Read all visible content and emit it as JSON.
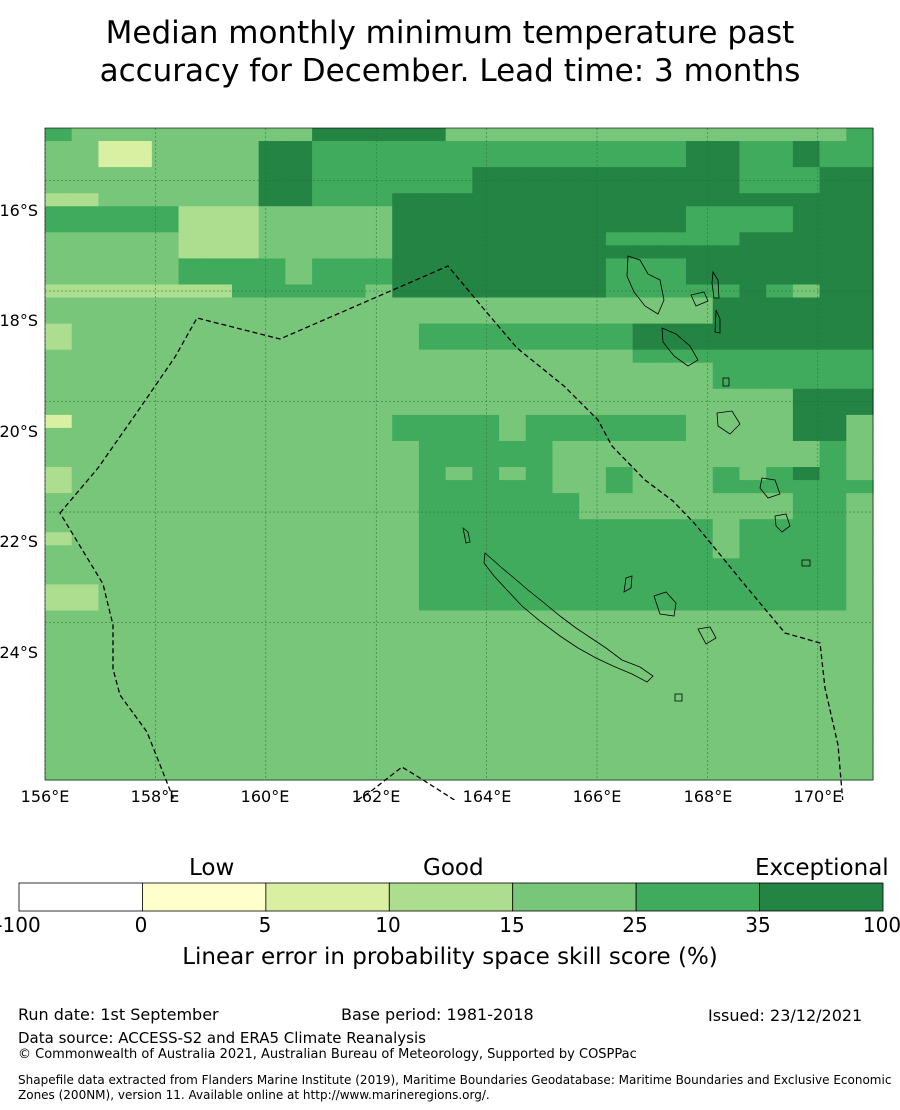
{
  "title": {
    "line1": "Median monthly minimum temperature past",
    "line2": "accuracy for December. Lead time: 3 months"
  },
  "map": {
    "lat_labels": [
      "16°S",
      "18°S",
      "20°S",
      "22°S",
      "24°S"
    ],
    "lon_labels": [
      "156°E",
      "158°E",
      "160°E",
      "162°E",
      "164°E",
      "166°E",
      "168°E",
      "170°E"
    ],
    "lon_range": [
      156,
      171
    ],
    "lat_range": [
      -26.85,
      -15.05
    ],
    "grid_step_deg": 0.5,
    "boundary_style": "dashed",
    "colors": [
      "#ffffff",
      "#ffffcc",
      "#d9f0a3",
      "#addd8e",
      "#78c679",
      "#41ab5d",
      "#238443"
    ],
    "rows_codes": [
      "5444444444666664444444444444445",
      "4422444466555555555555556655655",
      "4422444466555555555555556655655",
      "4444444466555555666666666655566",
      "4444444466555555666666666655566",
      "3344444466555666666666666666666",
      "5555533344444666666666665555666",
      "5555533344444666666666665555666",
      "4444433344444666666665555566666",
      "4444433344444666666666666666666",
      "4444455554555666666665556666666",
      "4444455554555666666665556666666",
      "3333333555554666666665555565466",
      "4444444444444444444444444666666",
      "4444444444444444444444444666666",
      "3444444444444455555555666666666",
      "3444444444444455555555666666666",
      "4444444444444444444444555555555",
      "4444444444444444444444444555555",
      "4444444444444444444444444555555",
      "4444444444444444444444444444666",
      "4444444444444444444444444444666",
      "2444444444444555545555554444664",
      "4444444444444555545555554444664",
      "4444444444444455555444444444454",
      "4444444444444455555444444444454",
      "3444444444444454545445444545654",
      "3444444444444455555445444555555",
      "4444444444444455555544444444554",
      "4444444444444455555544444444554",
      "4444444444444455555555555455554",
      "3444444444444455555555555455554",
      "4444444444444455555555555455554",
      "4444444444444455555555555555554",
      "4444444444444455555555555555554",
      "3344444444444455555555555555554",
      "3344444444444455555555555555554",
      "4444444444444444444444444444444",
      "4444444444444444444444444444444",
      "4444444444444444444444444444444",
      "4444444444444444444444444444444",
      "4444444444444444444444444444444",
      "4444444444444444444444444444444",
      "4444444444444444444444444444444",
      "4444444444444444444444444444444",
      "4444444444444444444444444444444",
      "4444444444444444444444444444444",
      "4444444444444444444444444444444",
      "4444444444444444444444444444444",
      "4444444444444444444444444444444"
    ]
  },
  "colorbar": {
    "headings": {
      "low": "Low",
      "good": "Good",
      "exceptional": "Exceptional"
    },
    "ticks": [
      "-100",
      "0",
      "5",
      "10",
      "15",
      "25",
      "35",
      "100"
    ],
    "label": "Linear error in probability space skill score (%)"
  },
  "footer": {
    "run_date": "Run date: 1st September",
    "base_period": "Base period: 1981-2018",
    "issued": "Issued: 23/12/2021",
    "data_source": "Data source: ACCESS-S2 and ERA5 Climate Reanalysis",
    "copyright": "© Commonwealth of Australia 2021, Australian Bureau of Meteorology, Supported by COSPPac",
    "shapefile": "Shapefile data extracted from Flanders Marine Institute (2019), Maritime Boundaries Geodatabase: Maritime Boundaries and Exclusive Economic Zones (200NM), version 11. Available online at http://www.marineregions.org/."
  }
}
